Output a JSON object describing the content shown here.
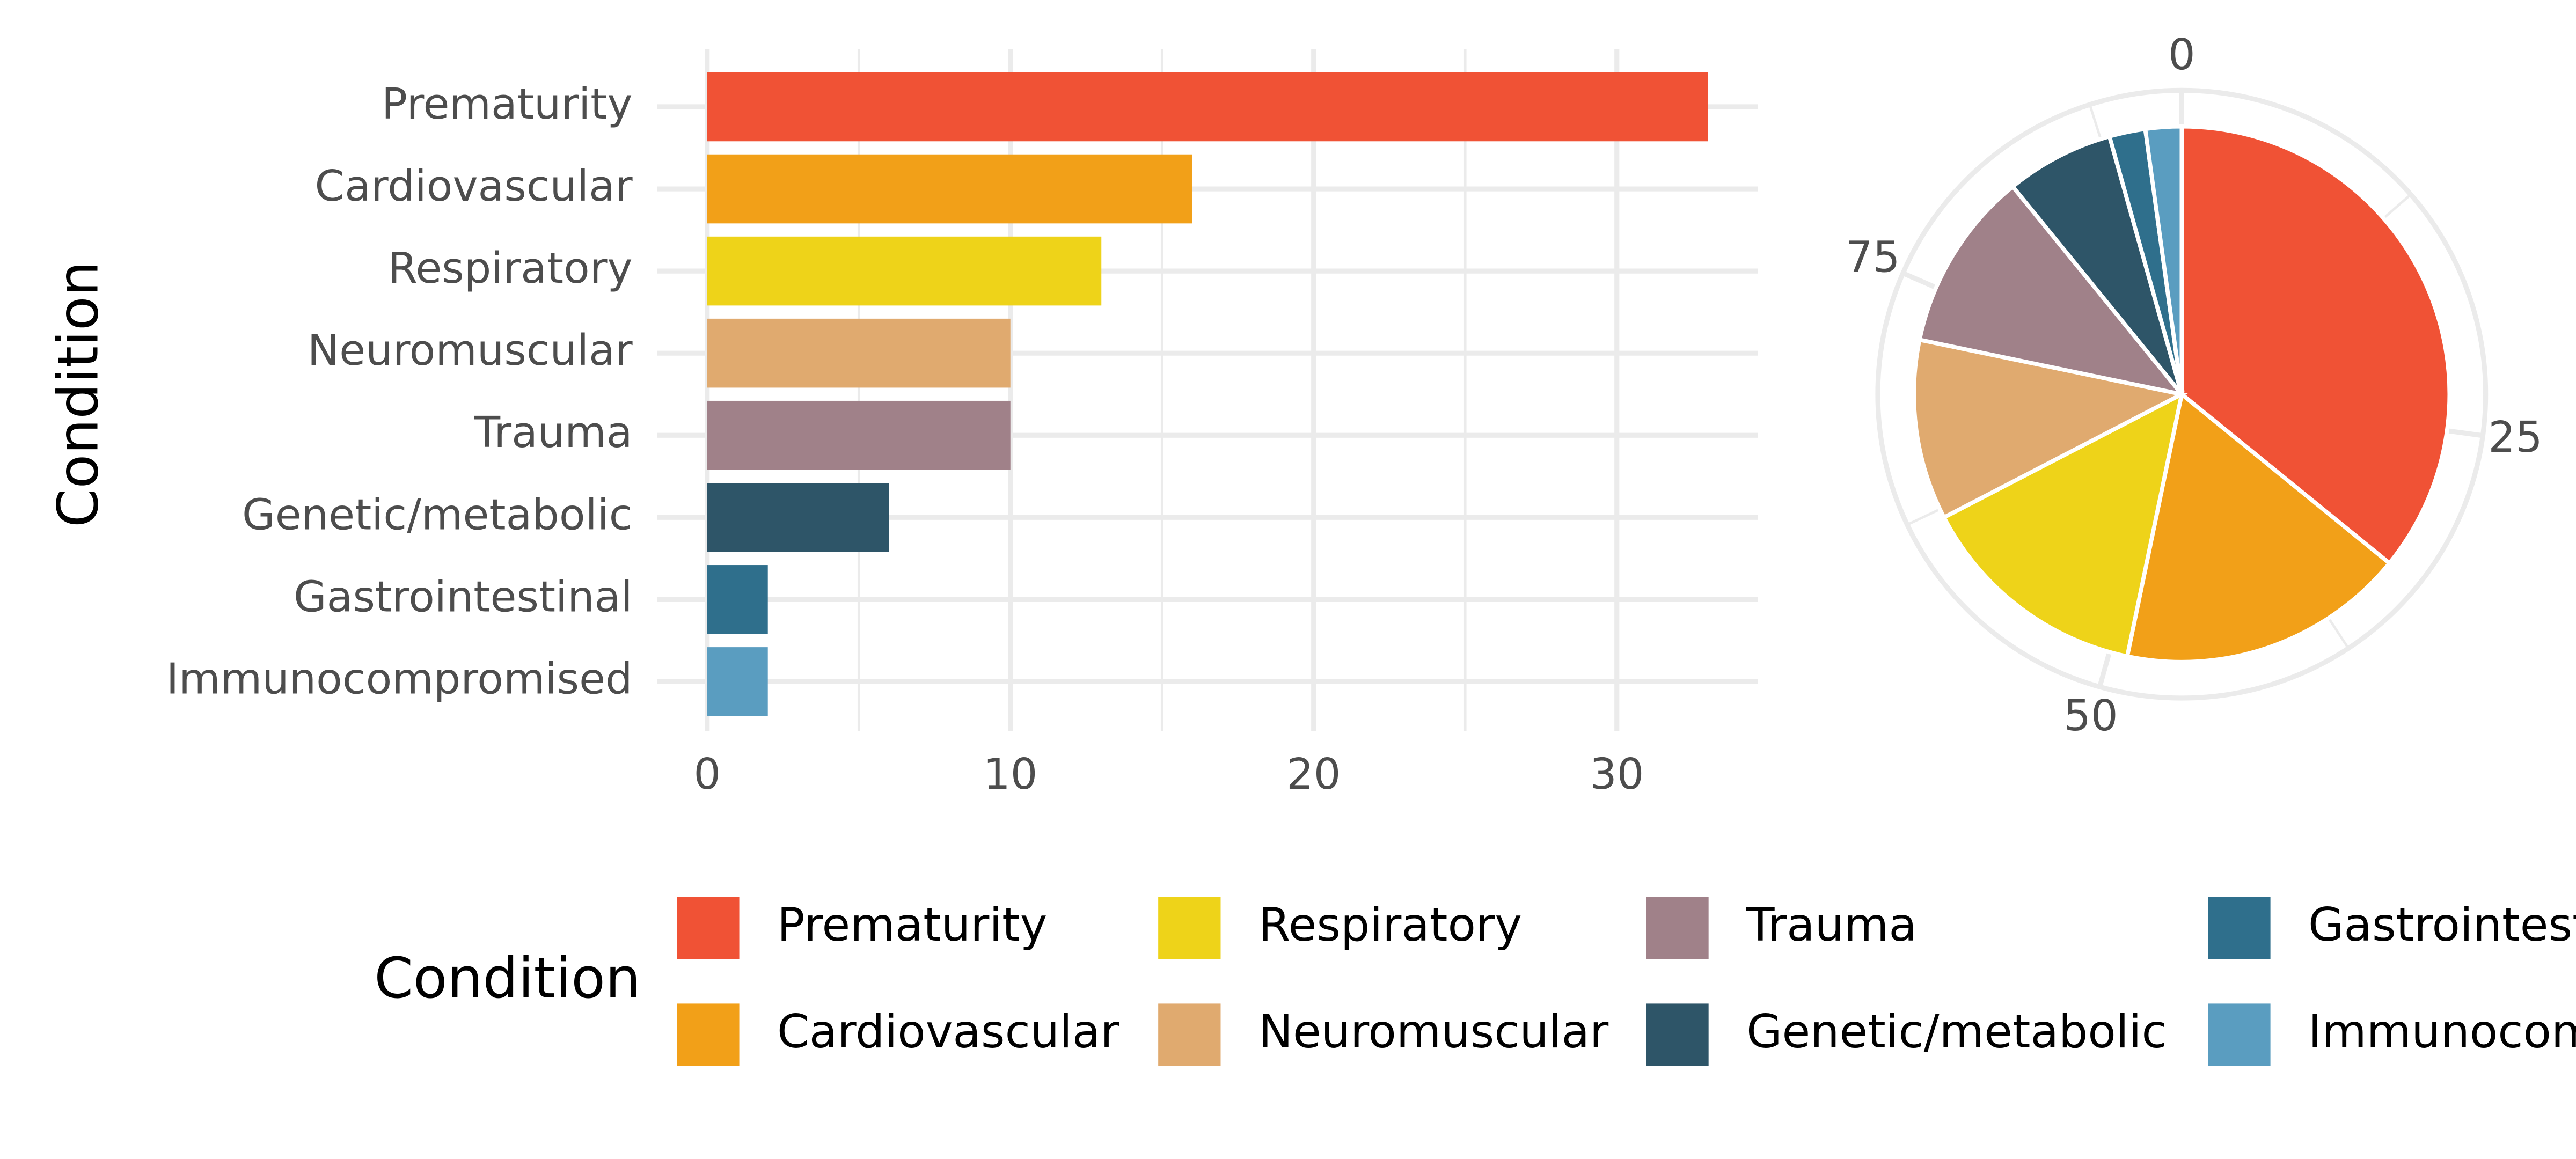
{
  "chart_data": [
    {
      "type": "bar",
      "orientation": "horizontal",
      "y_label": "Condition",
      "categories": [
        "Prematurity",
        "Cardiovascular",
        "Respiratory",
        "Neuromuscular",
        "Trauma",
        "Genetic/metabolic",
        "Gastrointestinal",
        "Immunocompromised"
      ],
      "values": [
        33,
        16,
        13,
        10,
        10,
        6,
        2,
        2
      ],
      "colors": [
        "#f05235",
        "#f2a018",
        "#eed319",
        "#e0aa6f",
        "#a08189",
        "#2e5568",
        "#2f6f8c",
        "#5a9dc0"
      ],
      "xlim": [
        -1.65,
        34.65
      ],
      "xticks": [
        0,
        10,
        20,
        30
      ],
      "minor_xticks": [
        5,
        15,
        25
      ],
      "grid": true,
      "legend_title": "Condition"
    },
    {
      "type": "pie",
      "values": [
        33,
        16,
        13,
        10,
        10,
        6,
        2,
        2
      ],
      "thetaticks": [
        0,
        25,
        50,
        75
      ],
      "minor_thetaticks": [
        12.5,
        37.5,
        62.5,
        87.5
      ],
      "grid": true
    }
  ]
}
